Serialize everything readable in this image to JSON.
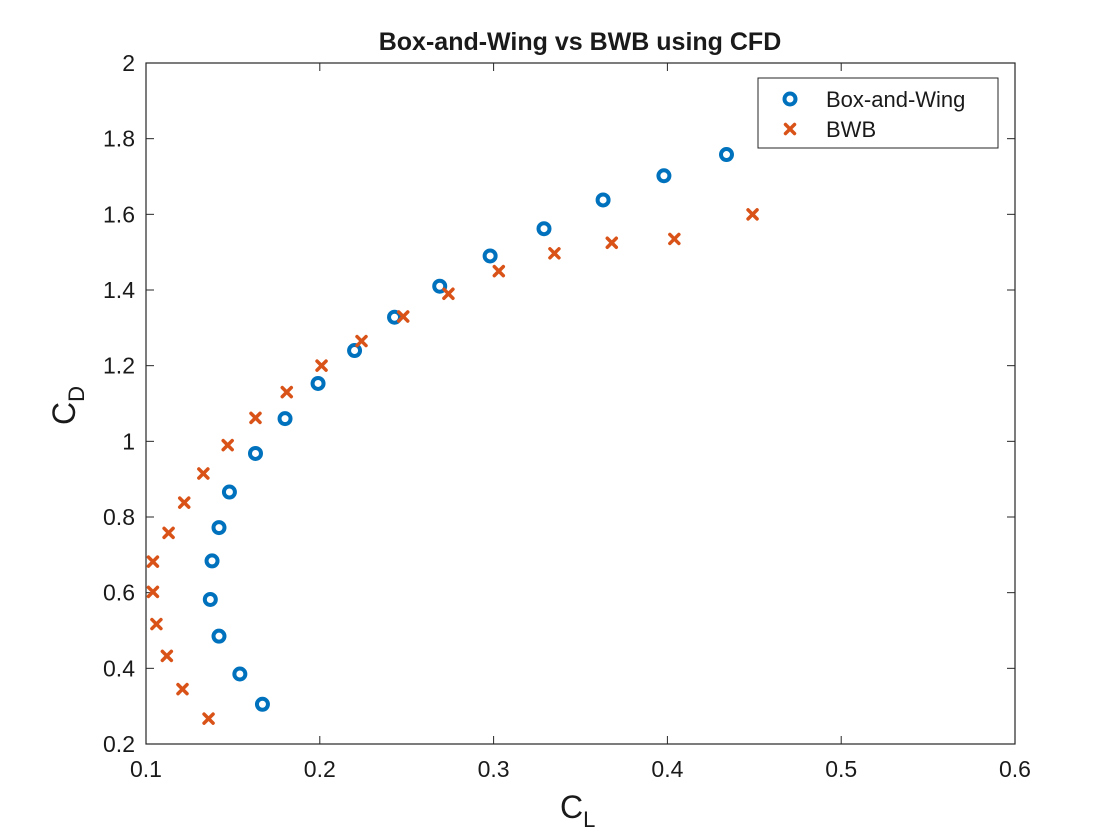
{
  "chart_data": {
    "type": "scatter",
    "title": "Box-and-Wing vs BWB using CFD",
    "xlabel": {
      "main": "C",
      "sub": "L"
    },
    "ylabel": {
      "main": "C",
      "sub": "D"
    },
    "xlim": [
      0.1,
      0.6
    ],
    "ylim": [
      0.2,
      2
    ],
    "xticks": [
      "0.1",
      "0.2",
      "0.3",
      "0.4",
      "0.5",
      "0.6"
    ],
    "yticks": [
      "0.2",
      "0.4",
      "0.6",
      "0.8",
      "1",
      "1.2",
      "1.4",
      "1.6",
      "1.8",
      "2"
    ],
    "grid": false,
    "legend_position": "top-right",
    "series": [
      {
        "name": "Box-and-Wing",
        "marker": "circle",
        "color": "#0072BD",
        "points": [
          [
            0.167,
            0.305
          ],
          [
            0.154,
            0.385
          ],
          [
            0.142,
            0.485
          ],
          [
            0.137,
            0.582
          ],
          [
            0.138,
            0.684
          ],
          [
            0.142,
            0.772
          ],
          [
            0.148,
            0.866
          ],
          [
            0.163,
            0.968
          ],
          [
            0.18,
            1.06
          ],
          [
            0.199,
            1.153
          ],
          [
            0.22,
            1.24
          ],
          [
            0.243,
            1.328
          ],
          [
            0.269,
            1.41
          ],
          [
            0.298,
            1.49
          ],
          [
            0.329,
            1.562
          ],
          [
            0.363,
            1.638
          ],
          [
            0.398,
            1.702
          ],
          [
            0.434,
            1.758
          ]
        ]
      },
      {
        "name": "BWB",
        "marker": "x",
        "color": "#D95319",
        "points": [
          [
            0.136,
            0.267
          ],
          [
            0.121,
            0.345
          ],
          [
            0.112,
            0.433
          ],
          [
            0.106,
            0.517
          ],
          [
            0.104,
            0.602
          ],
          [
            0.104,
            0.682
          ],
          [
            0.113,
            0.758
          ],
          [
            0.122,
            0.838
          ],
          [
            0.133,
            0.915
          ],
          [
            0.147,
            0.99
          ],
          [
            0.163,
            1.062
          ],
          [
            0.181,
            1.13
          ],
          [
            0.201,
            1.2
          ],
          [
            0.224,
            1.265
          ],
          [
            0.248,
            1.33
          ],
          [
            0.274,
            1.39
          ],
          [
            0.303,
            1.45
          ],
          [
            0.335,
            1.497
          ],
          [
            0.368,
            1.525
          ],
          [
            0.404,
            1.535
          ],
          [
            0.449,
            1.6
          ]
        ]
      }
    ]
  }
}
